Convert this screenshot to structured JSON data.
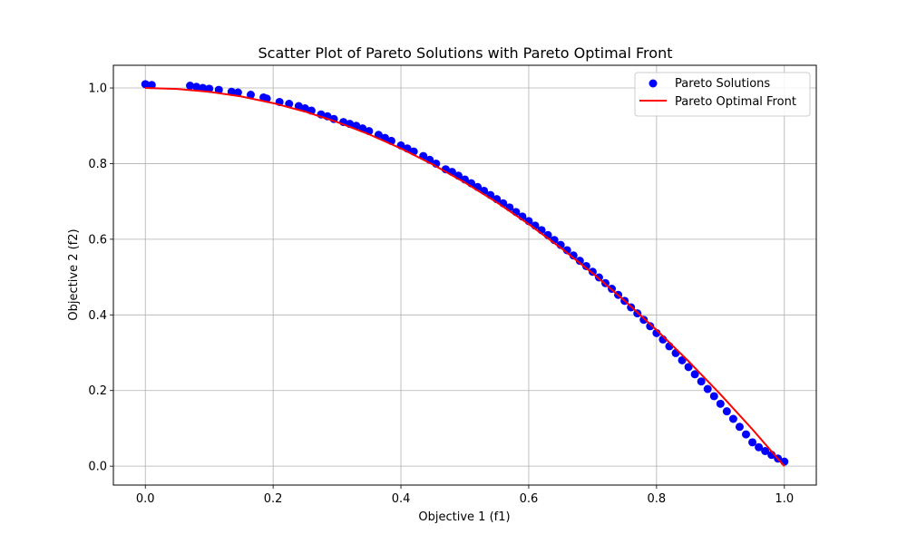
{
  "chart_data": {
    "type": "scatter",
    "title": "Scatter Plot of Pareto Solutions with Pareto Optimal Front",
    "xlabel": "Objective 1 (f1)",
    "ylabel": "Objective 2 (f2)",
    "xlim": [
      -0.05,
      1.05
    ],
    "ylim": [
      -0.05,
      1.06
    ],
    "xticks": [
      0.0,
      0.2,
      0.4,
      0.6,
      0.8,
      1.0
    ],
    "yticks": [
      0.0,
      0.2,
      0.4,
      0.6,
      0.8,
      1.0
    ],
    "xtick_labels": [
      "0.0",
      "0.2",
      "0.4",
      "0.6",
      "0.8",
      "1.0"
    ],
    "ytick_labels": [
      "0.0",
      "0.2",
      "0.4",
      "0.6",
      "0.8",
      "1.0"
    ],
    "grid": true,
    "legend_position": "top-right",
    "series": [
      {
        "name": "Pareto Solutions",
        "kind": "scatter",
        "color": "#0000ff",
        "x": [
          0.0,
          0.01,
          0.07,
          0.08,
          0.09,
          0.1,
          0.115,
          0.135,
          0.145,
          0.165,
          0.185,
          0.19,
          0.21,
          0.225,
          0.24,
          0.25,
          0.26,
          0.275,
          0.285,
          0.295,
          0.31,
          0.32,
          0.33,
          0.34,
          0.35,
          0.365,
          0.375,
          0.385,
          0.4,
          0.41,
          0.42,
          0.435,
          0.445,
          0.455,
          0.47,
          0.48,
          0.49,
          0.5,
          0.51,
          0.52,
          0.53,
          0.54,
          0.55,
          0.56,
          0.57,
          0.58,
          0.59,
          0.6,
          0.61,
          0.62,
          0.63,
          0.64,
          0.65,
          0.66,
          0.67,
          0.68,
          0.69,
          0.7,
          0.71,
          0.72,
          0.73,
          0.74,
          0.75,
          0.76,
          0.77,
          0.78,
          0.79,
          0.8,
          0.81,
          0.82,
          0.83,
          0.84,
          0.85,
          0.86,
          0.87,
          0.88,
          0.89,
          0.9,
          0.91,
          0.92,
          0.93,
          0.94,
          0.95,
          0.96,
          0.97,
          0.98,
          0.99,
          1.0
        ],
        "y": [
          1.01,
          1.008,
          1.006,
          1.003,
          1.0,
          0.998,
          0.995,
          0.99,
          0.988,
          0.982,
          0.975,
          0.972,
          0.963,
          0.958,
          0.952,
          0.946,
          0.94,
          0.93,
          0.925,
          0.918,
          0.91,
          0.905,
          0.9,
          0.893,
          0.886,
          0.876,
          0.868,
          0.86,
          0.848,
          0.84,
          0.832,
          0.82,
          0.81,
          0.8,
          0.785,
          0.778,
          0.768,
          0.758,
          0.748,
          0.738,
          0.728,
          0.717,
          0.706,
          0.695,
          0.684,
          0.672,
          0.66,
          0.648,
          0.636,
          0.624,
          0.611,
          0.598,
          0.585,
          0.571,
          0.557,
          0.543,
          0.529,
          0.514,
          0.499,
          0.484,
          0.469,
          0.453,
          0.437,
          0.42,
          0.404,
          0.387,
          0.37,
          0.352,
          0.335,
          0.317,
          0.299,
          0.28,
          0.262,
          0.243,
          0.224,
          0.204,
          0.185,
          0.165,
          0.145,
          0.125,
          0.104,
          0.084,
          0.063,
          0.05,
          0.04,
          0.03,
          0.02,
          0.012
        ]
      },
      {
        "name": "Pareto Optimal Front",
        "kind": "line",
        "color": "#ff0000",
        "x": [
          0.0,
          0.05,
          0.1,
          0.15,
          0.2,
          0.25,
          0.3,
          0.35,
          0.4,
          0.45,
          0.5,
          0.55,
          0.6,
          0.65,
          0.7,
          0.75,
          0.8,
          0.85,
          0.9,
          0.95,
          1.0
        ],
        "y": [
          1.0,
          0.9975,
          0.99,
          0.9775,
          0.96,
          0.9375,
          0.91,
          0.8775,
          0.84,
          0.7975,
          0.75,
          0.6975,
          0.64,
          0.5775,
          0.51,
          0.4375,
          0.36,
          0.2775,
          0.19,
          0.0975,
          0.0
        ]
      }
    ]
  }
}
